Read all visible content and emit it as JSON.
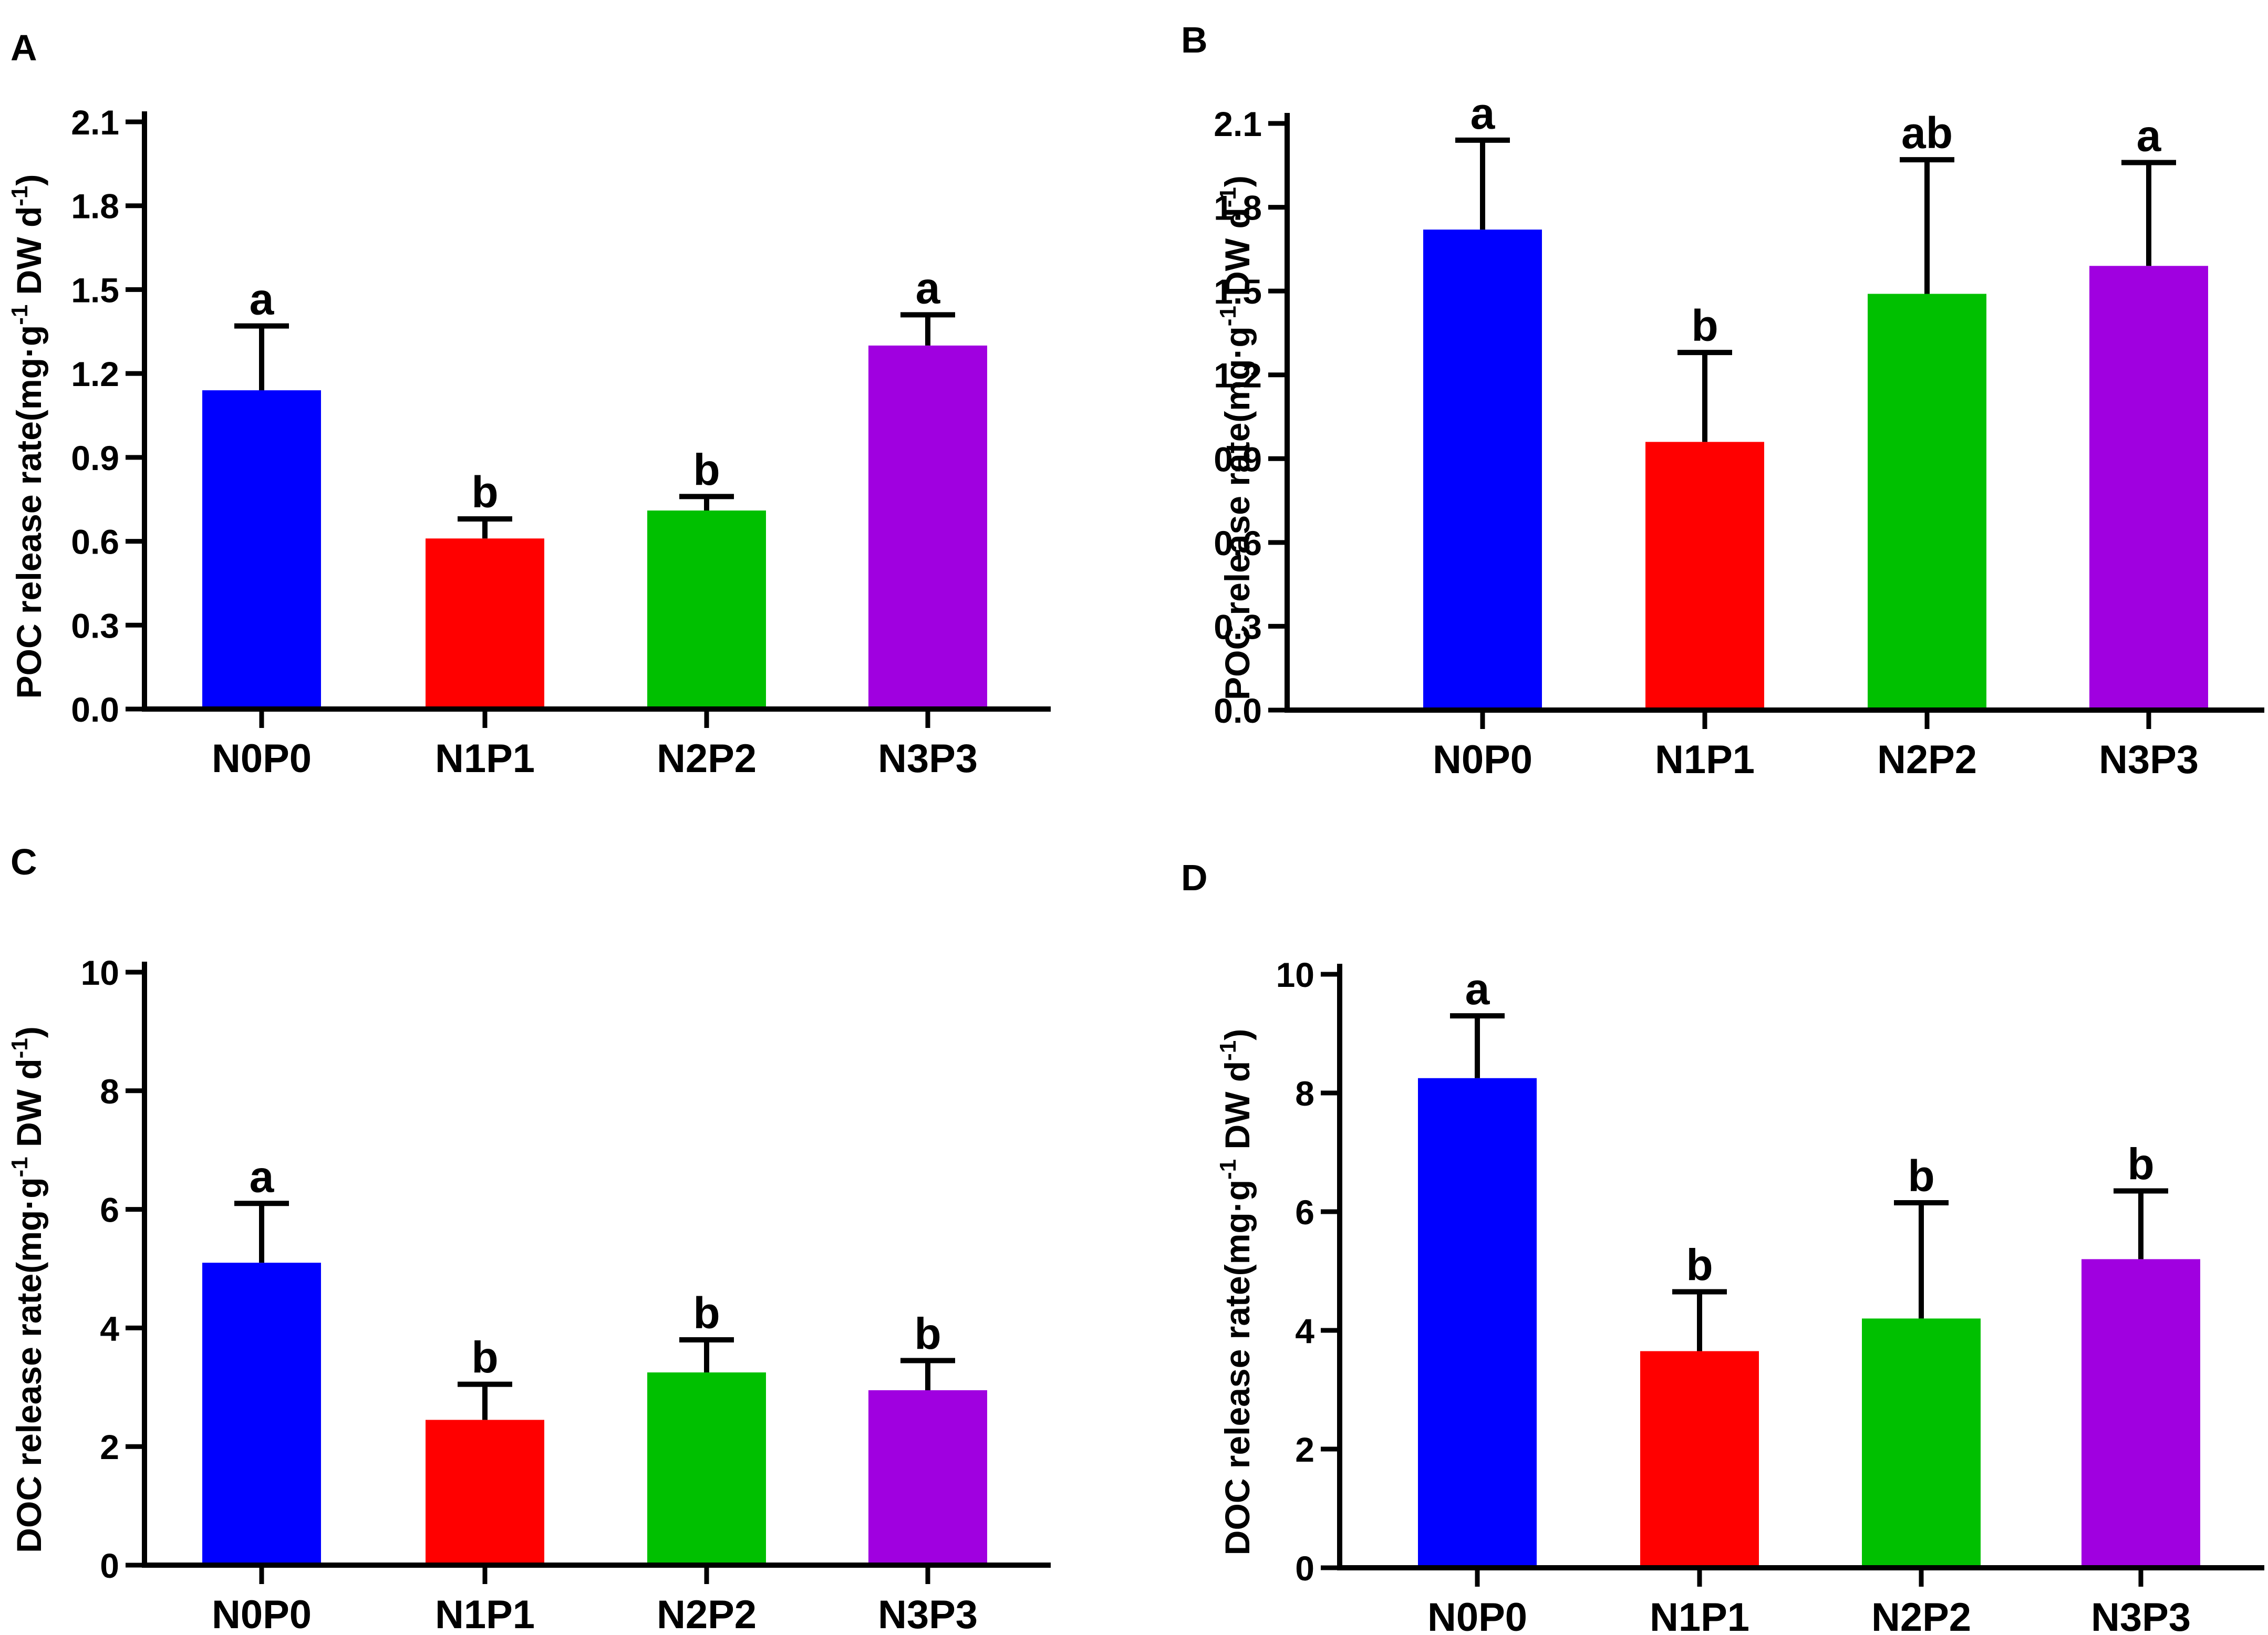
{
  "panels": [
    {
      "label": "A",
      "chart_data": {
        "type": "bar",
        "categories": [
          "N0P0",
          "N1P1",
          "N2P2",
          "N3P3"
        ],
        "values": [
          1.14,
          0.61,
          0.71,
          1.3
        ],
        "errors": [
          0.23,
          0.07,
          0.05,
          0.11
        ],
        "letters": [
          "a",
          "b",
          "b",
          "a"
        ],
        "colors": [
          "#0000ff",
          "#ff0000",
          "#00c000",
          "#a000e0"
        ],
        "ylabel": "POC release rate(mg·g-1 DW d-1)",
        "ylabel_parts": [
          "POC release rate(mg·g",
          "-1",
          " DW d",
          "-1",
          ")"
        ],
        "ylim": [
          0,
          2.1
        ],
        "yticks": [
          "0.0",
          "0.3",
          "0.6",
          "0.9",
          "1.2",
          "1.5",
          "1.8",
          "2.1"
        ]
      }
    },
    {
      "label": "B",
      "chart_data": {
        "type": "bar",
        "categories": [
          "N0P0",
          "N1P1",
          "N2P2",
          "N3P3"
        ],
        "values": [
          1.72,
          0.96,
          1.49,
          1.59
        ],
        "errors": [
          0.32,
          0.32,
          0.48,
          0.37
        ],
        "letters": [
          "a",
          "b",
          "ab",
          "a"
        ],
        "colors": [
          "#0000ff",
          "#ff0000",
          "#00c000",
          "#a000e0"
        ],
        "ylabel": "POC release rate(mg·g-1 DW d-1)",
        "ylabel_parts": [
          "POC release rate(mg·g",
          "-1",
          " DW d",
          "-1",
          ")"
        ],
        "ylim": [
          0,
          2.1
        ],
        "yticks": [
          "0.0",
          "0.3",
          "0.6",
          "0.9",
          "1.2",
          "1.5",
          "1.8",
          "2.1"
        ]
      }
    },
    {
      "label": "C",
      "chart_data": {
        "type": "bar",
        "categories": [
          "N0P0",
          "N1P1",
          "N2P2",
          "N3P3"
        ],
        "values": [
          5.1,
          2.45,
          3.25,
          2.95
        ],
        "errors": [
          1.0,
          0.6,
          0.55,
          0.5
        ],
        "letters": [
          "a",
          "b",
          "b",
          "b"
        ],
        "colors": [
          "#0000ff",
          "#ff0000",
          "#00c000",
          "#a000e0"
        ],
        "ylabel": "DOC release rate(mg·g-1 DW d-1)",
        "ylabel_parts": [
          "DOC release rate(mg·g",
          "-1",
          " DW d",
          "-1",
          ")"
        ],
        "ylim": [
          0,
          10
        ],
        "yticks": [
          "0",
          "2",
          "4",
          "6",
          "8",
          "10"
        ]
      }
    },
    {
      "label": "D",
      "chart_data": {
        "type": "bar",
        "categories": [
          "N0P0",
          "N1P1",
          "N2P2",
          "N3P3"
        ],
        "values": [
          8.25,
          3.65,
          4.2,
          5.2
        ],
        "errors": [
          1.05,
          1.0,
          1.95,
          1.15
        ],
        "letters": [
          "a",
          "b",
          "b",
          "b"
        ],
        "colors": [
          "#0000ff",
          "#ff0000",
          "#00c000",
          "#a000e0"
        ],
        "ylabel": "DOC release rate(mg·g-1 DW d-1)",
        "ylabel_parts": [
          "DOC release rate(mg·g",
          "-1",
          " DW d",
          "-1",
          ")"
        ],
        "ylim": [
          0,
          10
        ],
        "yticks": [
          "0",
          "2",
          "4",
          "6",
          "8",
          "10"
        ]
      }
    }
  ]
}
